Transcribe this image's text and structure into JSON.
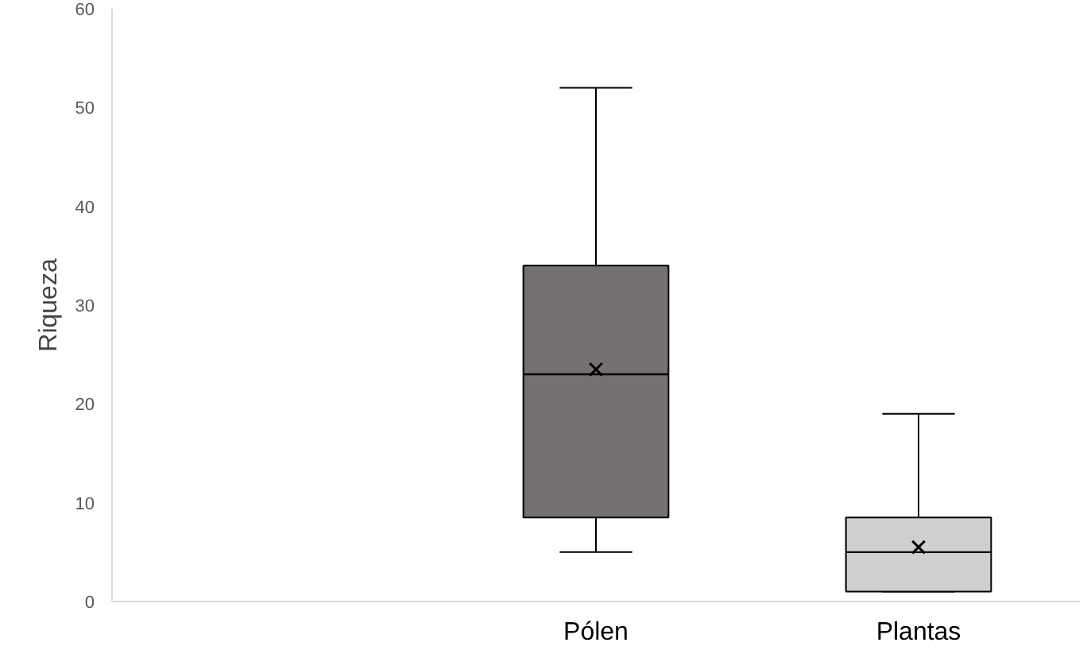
{
  "chart_data": {
    "type": "box",
    "ylabel": "Riqueza",
    "categories": [
      null,
      "Pólen",
      "Plantas"
    ],
    "boxes": [
      null,
      {
        "low": 5,
        "q1": 8.5,
        "median": 23,
        "q3": 34,
        "high": 52,
        "mean": 23.5
      },
      {
        "low": 1,
        "q1": 1,
        "median": 5,
        "q3": 8.5,
        "high": 19,
        "mean": 5.5
      }
    ],
    "colors": [
      null,
      "#767171",
      "#d0cece"
    ],
    "ylim": [
      0,
      60
    ],
    "yticks": [
      0,
      10,
      20,
      30,
      40,
      50,
      60
    ],
    "grid": false,
    "marker": "cross"
  }
}
